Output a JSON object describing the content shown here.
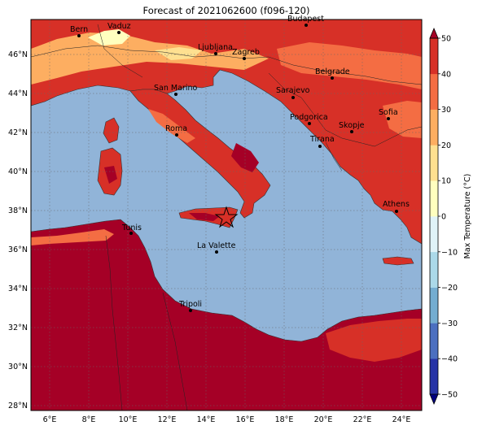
{
  "title": "Forecast of 2021062600 (f096-120)",
  "map": {
    "lon_ticks": [
      "6°E",
      "8°E",
      "10°E",
      "12°E",
      "14°E",
      "16°E",
      "18°E",
      "20°E",
      "22°E",
      "24°E"
    ],
    "lat_ticks": [
      "28°N",
      "30°N",
      "32°N",
      "34°N",
      "36°N",
      "38°N",
      "40°N",
      "42°N",
      "44°N",
      "46°N"
    ],
    "cities": [
      {
        "name": "Bern"
      },
      {
        "name": "Vaduz"
      },
      {
        "name": "Budapest"
      },
      {
        "name": "Ljubljana"
      },
      {
        "name": "Zagreb"
      },
      {
        "name": "Belgrade"
      },
      {
        "name": "San Marino"
      },
      {
        "name": "Sarajevo"
      },
      {
        "name": "Sofia"
      },
      {
        "name": "Podgorica"
      },
      {
        "name": "Skopje"
      },
      {
        "name": "Roma"
      },
      {
        "name": "Tirana"
      },
      {
        "name": "Athens"
      },
      {
        "name": "Tunis"
      },
      {
        "name": "La Valette"
      },
      {
        "name": "Tripoli"
      }
    ],
    "marker": "star-marker"
  },
  "colorbar": {
    "label": "Max Temperature (°C)",
    "ticks": [
      "50",
      "40",
      "30",
      "20",
      "10",
      "0",
      "−10",
      "−20",
      "−30",
      "−40",
      "−50"
    ],
    "colors": [
      "#00007f",
      "#2633a6",
      "#4b6fc0",
      "#74add1",
      "#abd9e9",
      "#e0f3f8",
      "#ffffbf",
      "#fee090",
      "#fdae61",
      "#f46d43",
      "#d73027",
      "#a50026"
    ]
  }
}
